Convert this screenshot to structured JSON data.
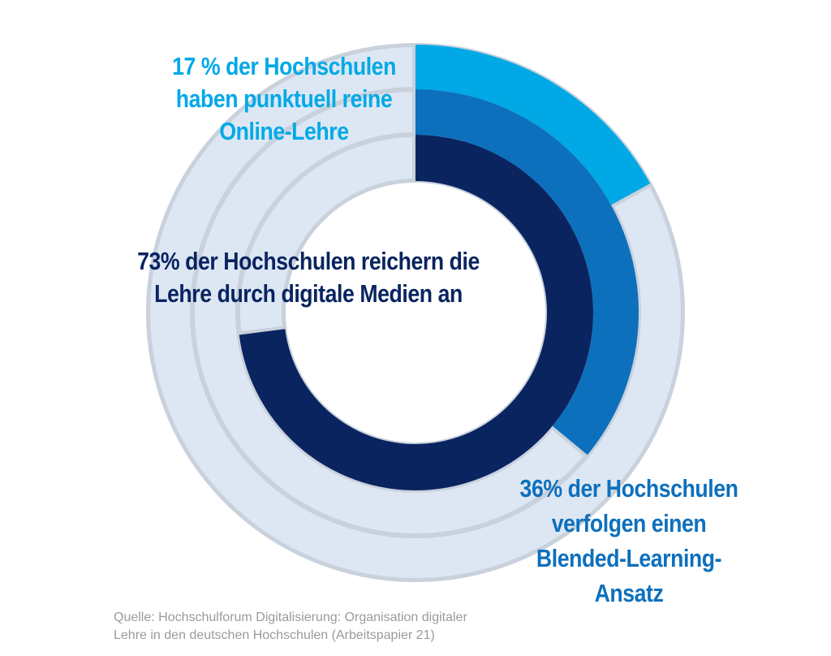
{
  "chart_data": {
    "type": "pie",
    "variant": "concentric-donut",
    "unit": "%",
    "series": [
      {
        "name": "online",
        "ring": "outer",
        "value": 17,
        "color": "#00a9e6",
        "label_lines": [
          "17 % der Hochschulen",
          "haben punktuell reine",
          "Online-Lehre"
        ]
      },
      {
        "name": "blended",
        "ring": "middle",
        "value": 36,
        "color": "#0d70bd",
        "label_lines": [
          "36% der Hochschulen",
          "verfolgen einen",
          "Blended-Learning-",
          "Ansatz"
        ]
      },
      {
        "name": "medien",
        "ring": "inner",
        "value": 73,
        "color": "#0a2460",
        "label_lines": [
          "73% der Hochschulen reichern die",
          "Lehre durch digitale Medien an"
        ]
      }
    ],
    "track_color": "#dde7f4",
    "track_border_color": "#c8d1dc",
    "source_lines": [
      "Quelle: Hochschulforum Digitalisierung: Organisation digitaler",
      "Lehre in den deutschen Hochschulen (Arbeitspapier 21)"
    ]
  }
}
